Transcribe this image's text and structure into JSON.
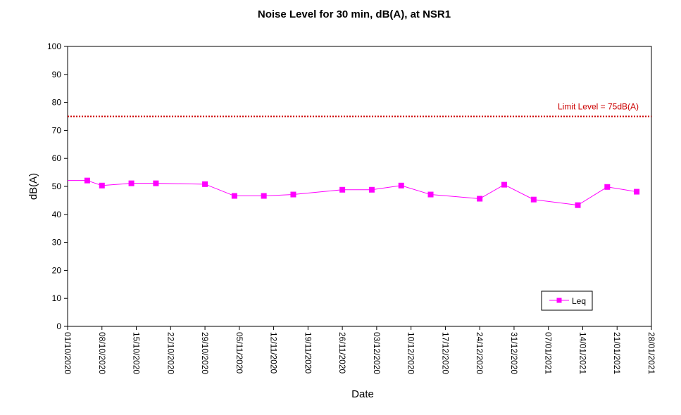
{
  "chart_data": {
    "type": "line",
    "title": "Noise Level for 30 min, dB(A), at NSR1",
    "xlabel": "Date",
    "ylabel": "dB(A)",
    "ylim": [
      0,
      100
    ],
    "yticks": [
      0,
      10,
      20,
      30,
      40,
      50,
      60,
      70,
      80,
      90,
      100
    ],
    "xlim": [
      "2020-10-01",
      "2021-01-28"
    ],
    "xticks": [
      "01/10/2020",
      "08/10/2020",
      "15/10/2020",
      "22/10/2020",
      "29/10/2020",
      "05/11/2020",
      "12/11/2020",
      "19/11/2020",
      "26/11/2020",
      "03/12/2020",
      "10/12/2020",
      "17/12/2020",
      "24/12/2020",
      "31/12/2020",
      "07/01/2021",
      "14/01/2021",
      "21/01/2021",
      "28/01/2021"
    ],
    "grid": false,
    "legend": {
      "position": "bottom-right",
      "entries": [
        "Leq"
      ]
    },
    "series": [
      {
        "name": "Leq",
        "color": "#ff00ff",
        "marker": "square",
        "points": [
          {
            "x": "2020-10-05",
            "y": 52.1
          },
          {
            "x": "2020-10-08",
            "y": 50.3
          },
          {
            "x": "2020-10-14",
            "y": 51.1
          },
          {
            "x": "2020-10-19",
            "y": 51.1
          },
          {
            "x": "2020-10-29",
            "y": 50.8
          },
          {
            "x": "2020-11-04",
            "y": 46.6
          },
          {
            "x": "2020-11-10",
            "y": 46.6
          },
          {
            "x": "2020-11-16",
            "y": 47.1
          },
          {
            "x": "2020-11-26",
            "y": 48.8
          },
          {
            "x": "2020-12-02",
            "y": 48.8
          },
          {
            "x": "2020-12-08",
            "y": 50.3
          },
          {
            "x": "2020-12-14",
            "y": 47.1
          },
          {
            "x": "2020-12-24",
            "y": 45.6
          },
          {
            "x": "2020-12-29",
            "y": 50.6
          },
          {
            "x": "2021-01-04",
            "y": 45.3
          },
          {
            "x": "2021-01-13",
            "y": 43.3
          },
          {
            "x": "2021-01-19",
            "y": 49.8
          },
          {
            "x": "2021-01-25",
            "y": 48.1
          }
        ]
      }
    ],
    "limit_line": {
      "value": 75,
      "label": "Limit Level  = 75dB(A)",
      "color": "#cc0000",
      "style": "dotted"
    }
  }
}
